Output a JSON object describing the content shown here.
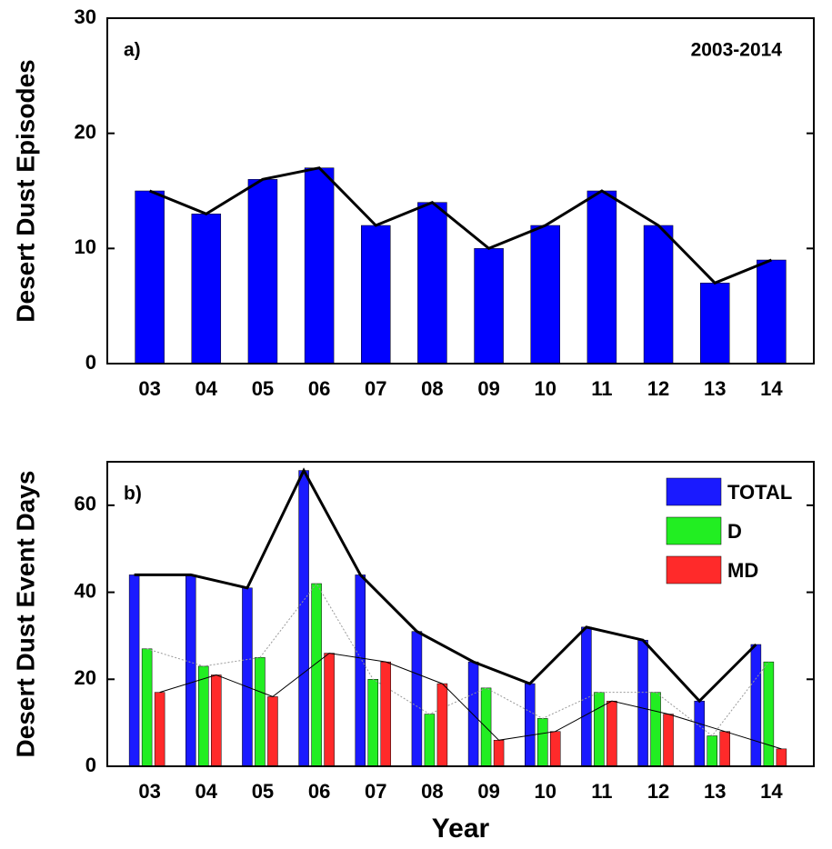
{
  "chart_data": [
    {
      "type": "bar",
      "annotation": "a)",
      "subtitle": "2003-2014",
      "y_label": "Desert Dust Episodes",
      "categories": [
        "03",
        "04",
        "05",
        "06",
        "07",
        "08",
        "09",
        "10",
        "11",
        "12",
        "13",
        "14"
      ],
      "values": [
        15,
        13,
        16,
        17,
        12,
        14,
        10,
        12,
        15,
        12,
        7,
        9
      ],
      "color": "#0000ff",
      "line_color": "#000000",
      "ylim": [
        0,
        30
      ],
      "yticks": [
        0,
        10,
        20,
        30
      ]
    },
    {
      "type": "grouped_bar",
      "annotation": "b)",
      "y_label": "Desert Dust Event Days",
      "x_label": "Year",
      "categories": [
        "03",
        "04",
        "05",
        "06",
        "07",
        "08",
        "09",
        "10",
        "11",
        "12",
        "13",
        "14"
      ],
      "series": [
        {
          "name": "TOTAL",
          "color": "#1a1aff",
          "values": [
            44,
            44,
            41,
            68,
            44,
            31,
            24,
            19,
            32,
            29,
            15,
            28
          ]
        },
        {
          "name": "D",
          "color": "#22ee22",
          "values": [
            27,
            23,
            25,
            42,
            20,
            12,
            18,
            11,
            17,
            17,
            7,
            24
          ]
        },
        {
          "name": "MD",
          "color": "#ff2a2a",
          "values": [
            17,
            21,
            16,
            26,
            24,
            19,
            6,
            8,
            15,
            12,
            8,
            4
          ]
        }
      ],
      "ylim": [
        0,
        70
      ],
      "yticks": [
        0,
        20,
        40,
        60
      ],
      "legend": "upper right"
    }
  ]
}
